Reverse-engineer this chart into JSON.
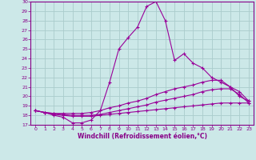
{
  "xlabel": "Windchill (Refroidissement éolien,°C)",
  "xlim": [
    -0.5,
    23.5
  ],
  "ylim": [
    17,
    30
  ],
  "xticks": [
    0,
    1,
    2,
    3,
    4,
    5,
    6,
    7,
    8,
    9,
    10,
    11,
    12,
    13,
    14,
    15,
    16,
    17,
    18,
    19,
    20,
    21,
    22,
    23
  ],
  "yticks": [
    17,
    18,
    19,
    20,
    21,
    22,
    23,
    24,
    25,
    26,
    27,
    28,
    29,
    30
  ],
  "background_color": "#cce8e8",
  "grid_color": "#aacccc",
  "line_color": "#990099",
  "curves": [
    [
      18.5,
      18.3,
      18.0,
      17.8,
      17.2,
      17.2,
      17.5,
      18.5,
      21.5,
      25.0,
      26.2,
      27.3,
      29.5,
      30.0,
      28.0,
      23.8,
      24.5,
      23.5,
      23.0,
      22.0,
      21.5,
      21.0,
      20.0,
      19.5
    ],
    [
      18.5,
      18.3,
      18.2,
      18.2,
      18.2,
      18.2,
      18.3,
      18.5,
      18.8,
      19.0,
      19.3,
      19.5,
      19.8,
      20.2,
      20.5,
      20.8,
      21.0,
      21.2,
      21.5,
      21.7,
      21.7,
      21.0,
      20.5,
      19.5
    ],
    [
      18.5,
      18.3,
      18.2,
      18.1,
      18.0,
      18.0,
      18.0,
      18.1,
      18.3,
      18.5,
      18.7,
      18.9,
      19.1,
      19.4,
      19.6,
      19.8,
      20.0,
      20.2,
      20.5,
      20.7,
      20.8,
      20.8,
      20.2,
      19.3
    ],
    [
      18.5,
      18.3,
      18.1,
      18.0,
      17.9,
      17.9,
      17.9,
      18.0,
      18.1,
      18.2,
      18.3,
      18.4,
      18.5,
      18.6,
      18.7,
      18.8,
      18.9,
      19.0,
      19.1,
      19.2,
      19.3,
      19.3,
      19.3,
      19.3
    ]
  ],
  "tick_fontsize": 4.5,
  "xlabel_fontsize": 5.5
}
